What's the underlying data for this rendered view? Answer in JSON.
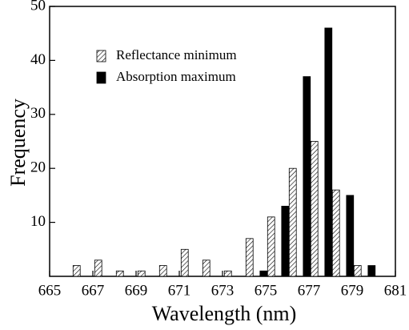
{
  "chart_data": {
    "type": "bar",
    "x_label": "Wavelength (nm)",
    "y_label": "Frequency",
    "x": [
      666,
      667,
      668,
      669,
      670,
      671,
      672,
      673,
      674,
      675,
      676,
      677,
      678,
      679,
      680
    ],
    "series": [
      {
        "name": "Reflectance minimum",
        "color": "hatched",
        "values": [
          2,
          3,
          1,
          1,
          2,
          5,
          3,
          1,
          7,
          11,
          20,
          25,
          16,
          2,
          null
        ]
      },
      {
        "name": "Absorption maximum",
        "color": "#000000",
        "values": [
          null,
          null,
          null,
          null,
          null,
          null,
          null,
          null,
          null,
          1,
          13,
          37,
          46,
          15,
          2
        ]
      }
    ],
    "xlim": [
      665,
      681
    ],
    "xticks": [
      665,
      667,
      669,
      671,
      673,
      675,
      677,
      679,
      681
    ],
    "ylim": [
      0,
      50
    ],
    "yticks": [
      10,
      20,
      30,
      40,
      50
    ],
    "legend": "upper-left"
  }
}
